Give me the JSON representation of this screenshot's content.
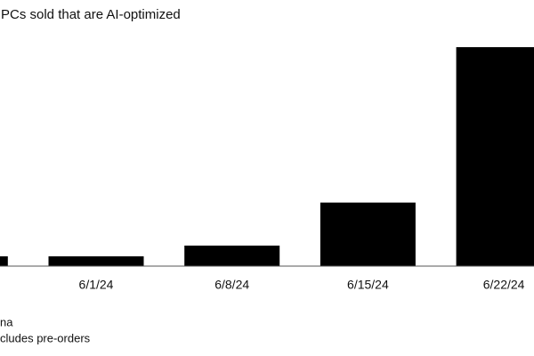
{
  "chart_data": {
    "type": "bar",
    "title": "PCs sold that are AI-optimized",
    "categories": [
      null,
      "6/1/24",
      "6/8/24",
      "6/15/24",
      "6/22/24"
    ],
    "values": [
      1,
      1,
      2.1,
      6.5,
      22.4
    ],
    "color": "#000000",
    "notes": [
      "na",
      "cludes pre-orders"
    ]
  }
}
